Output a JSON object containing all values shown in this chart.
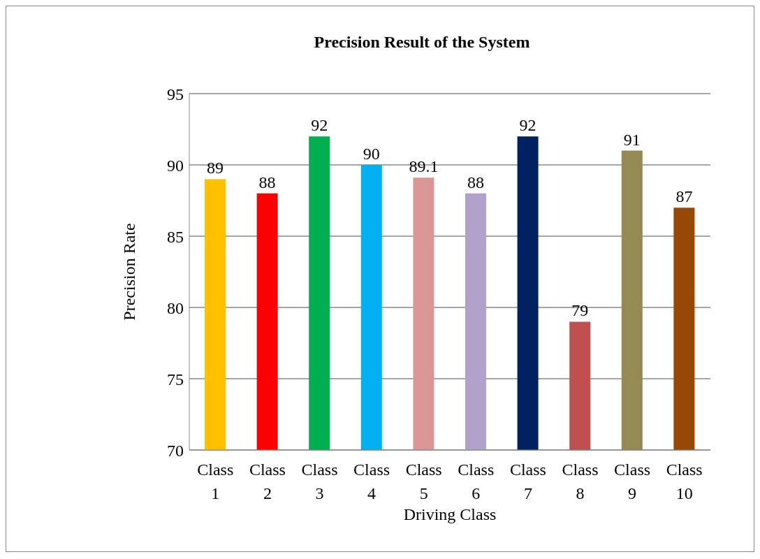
{
  "chart_data": {
    "type": "bar",
    "title": "Precision Result of the System",
    "xlabel": "Driving Class",
    "ylabel": "Precision Rate",
    "categories": [
      "Class 1",
      "Class 2",
      "Class 3",
      "Class 4",
      "Class 5",
      "Class 6",
      "Class 7",
      "Class 8",
      "Class 9",
      "Class 10"
    ],
    "values": [
      89,
      88,
      92,
      90,
      89.1,
      88,
      92,
      79,
      91,
      87
    ],
    "colors": [
      "#ffc000",
      "#ff0000",
      "#00b050",
      "#00b0f0",
      "#da9694",
      "#b1a0c7",
      "#002060",
      "#c0504d",
      "#948a54",
      "#974706"
    ],
    "ylim": [
      70,
      95
    ],
    "yticks": [
      70,
      75,
      80,
      85,
      90,
      95
    ],
    "grid": "y",
    "data_labels": true
  }
}
